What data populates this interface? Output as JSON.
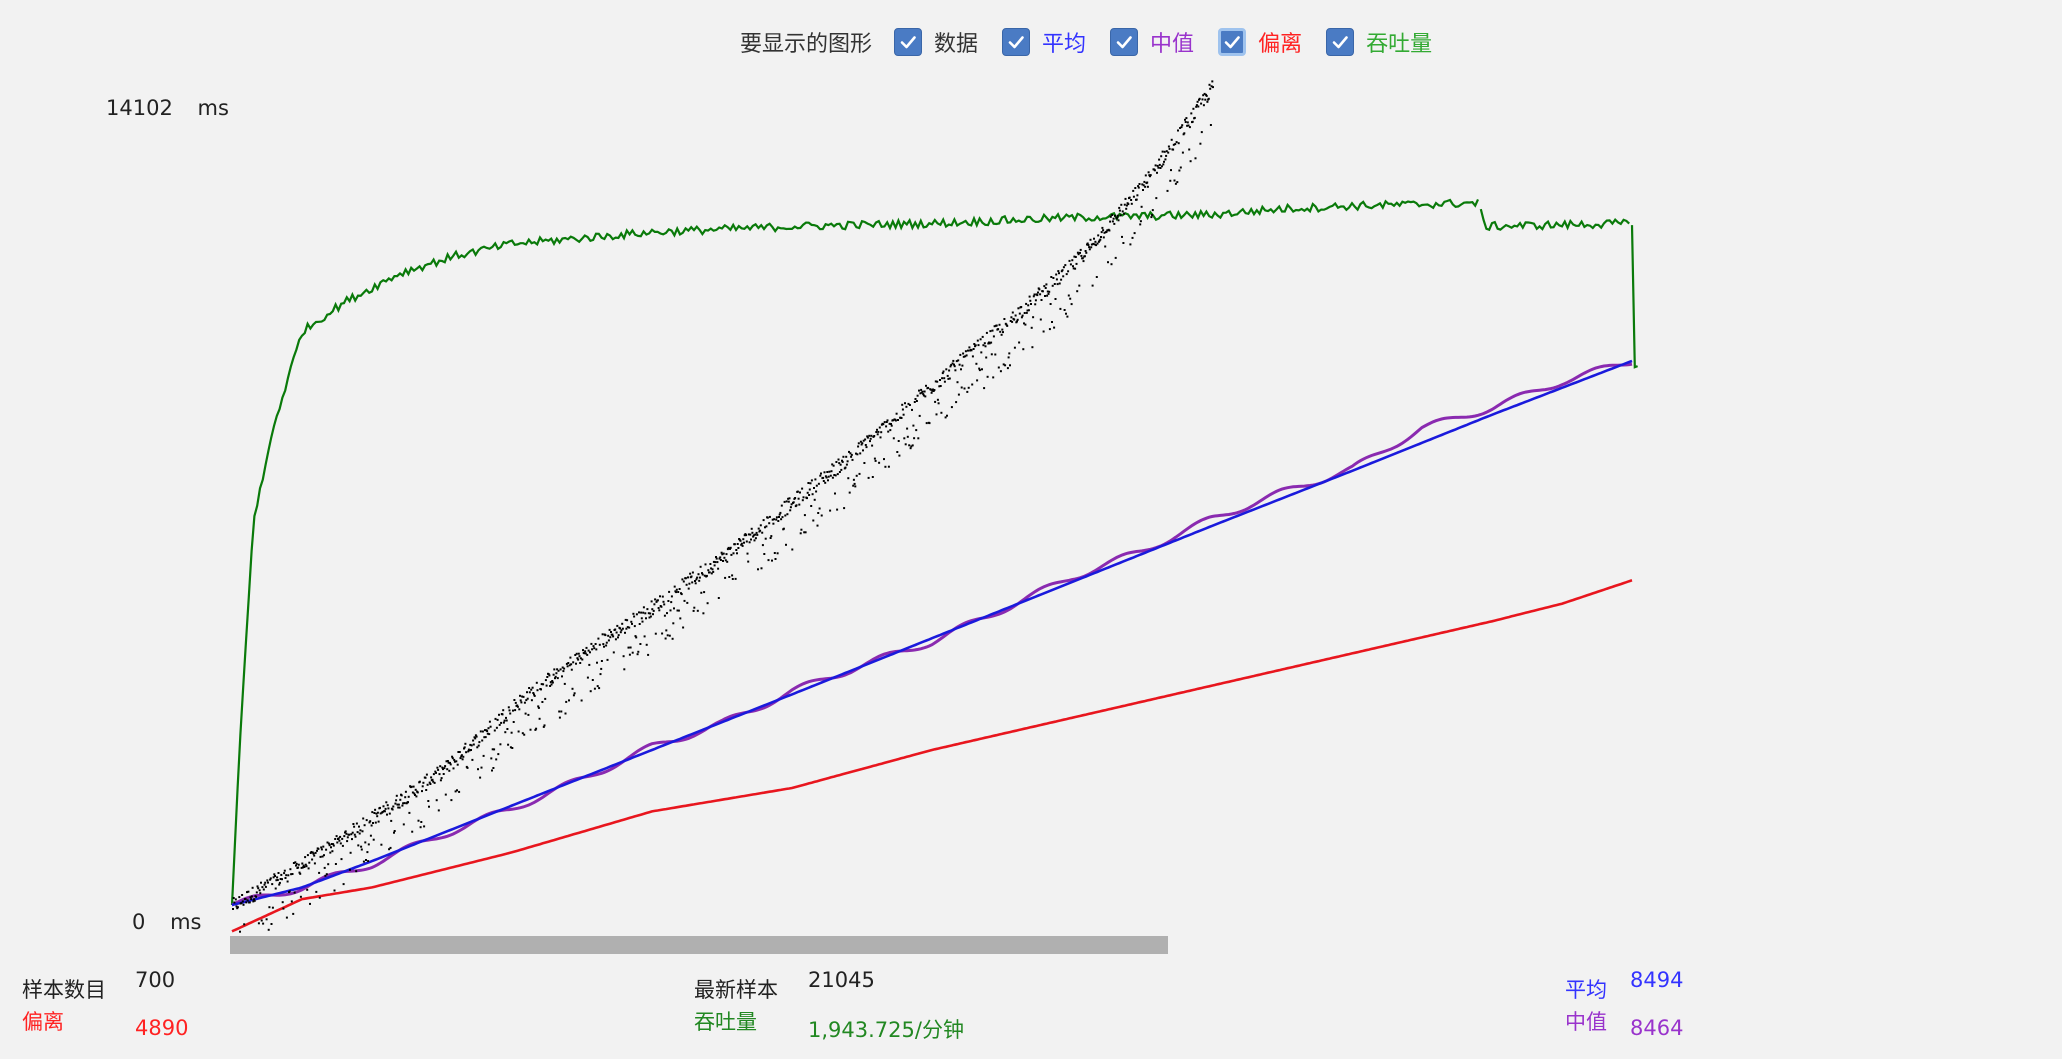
{
  "legend": {
    "title": "要显示的图形",
    "items": [
      {
        "key": "data",
        "label": "数据",
        "checked": true,
        "color": "#333333"
      },
      {
        "key": "average",
        "label": "平均",
        "checked": true,
        "color": "#3333ff"
      },
      {
        "key": "median",
        "label": "中值",
        "checked": true,
        "color": "#9933cc"
      },
      {
        "key": "deviation",
        "label": "偏离",
        "checked": true,
        "color": "#ff2222",
        "focused": true
      },
      {
        "key": "throughput",
        "label": "吞吐量",
        "checked": true,
        "color": "#33aa33"
      }
    ]
  },
  "axis": {
    "y_max_value": "14102",
    "y_max_unit": "ms",
    "y_min_value": "0",
    "y_min_unit": "ms"
  },
  "stats": {
    "sample_count_label": "样本数目",
    "sample_count_value": "700",
    "deviation_label": "偏离",
    "deviation_value": "4890",
    "latest_sample_label": "最新样本",
    "latest_sample_value": "21045",
    "throughput_label": "吞吐量",
    "throughput_value": "1,943.725/分钟",
    "average_label": "平均",
    "average_value": "8494",
    "median_label": "中值",
    "median_value": "8464"
  },
  "colors": {
    "data": "#000000",
    "average": "#1a1adc",
    "median": "#8a2ab0",
    "deviation": "#e8161e",
    "throughput": "#0a7a0a",
    "progress": "#b0b0b0",
    "stat_label_black": "#222222",
    "stat_deviation": "#ff2222",
    "stat_throughput": "#228822",
    "stat_average": "#3333ff",
    "stat_median": "#9933cc"
  },
  "progress_fraction": 0.67,
  "chart_data": {
    "type": "line",
    "ylim": [
      0,
      14102
    ],
    "y_unit": "ms",
    "x_unit": "sample",
    "xlim": [
      0,
      1000
    ],
    "series": [
      {
        "key": "data",
        "style": "scatter",
        "x": [
          0,
          50,
          100,
          150,
          200,
          250,
          300,
          350,
          400,
          450,
          500,
          550,
          600,
          650,
          700
        ],
        "y": [
          0,
          700,
          1500,
          2300,
          3400,
          4300,
          5100,
          5950,
          6900,
          7850,
          8900,
          9900,
          10950,
          12300,
          14000
        ]
      },
      {
        "key": "average",
        "x": [
          0,
          50,
          100,
          200,
          300,
          400,
          500,
          600,
          700,
          800,
          900,
          1000
        ],
        "y": [
          0,
          300,
          750,
          1700,
          2650,
          3600,
          4560,
          5520,
          6480,
          7420,
          8380,
          9300
        ]
      },
      {
        "key": "median",
        "x": [
          0,
          50,
          100,
          150,
          200,
          250,
          300,
          350,
          400,
          450,
          500,
          550,
          600,
          650,
          700,
          750,
          800,
          850,
          900,
          950,
          1000
        ],
        "y": [
          0,
          300,
          700,
          1200,
          1650,
          2150,
          2700,
          3100,
          3650,
          4100,
          4500,
          5050,
          5600,
          6050,
          6600,
          7050,
          7450,
          8150,
          8500,
          8950,
          9300
        ]
      },
      {
        "key": "deviation",
        "x": [
          0,
          50,
          100,
          200,
          300,
          400,
          500,
          600,
          700,
          800,
          900,
          950,
          1000
        ],
        "y": [
          -450,
          100,
          300,
          900,
          1600,
          2000,
          2650,
          3200,
          3750,
          4300,
          4850,
          5150,
          5550
        ]
      },
      {
        "key": "throughput",
        "x": [
          0,
          5,
          15,
          30,
          50,
          80,
          120,
          160,
          200,
          300,
          400,
          500,
          600,
          700,
          750,
          800,
          890,
          895,
          1000,
          1001,
          1005
        ],
        "y": [
          0,
          2500,
          6500,
          8200,
          9800,
          10300,
          10800,
          11100,
          11300,
          11500,
          11600,
          11650,
          11750,
          11800,
          11900,
          11950,
          12000,
          11600,
          11650,
          9300,
          9150
        ]
      }
    ]
  }
}
